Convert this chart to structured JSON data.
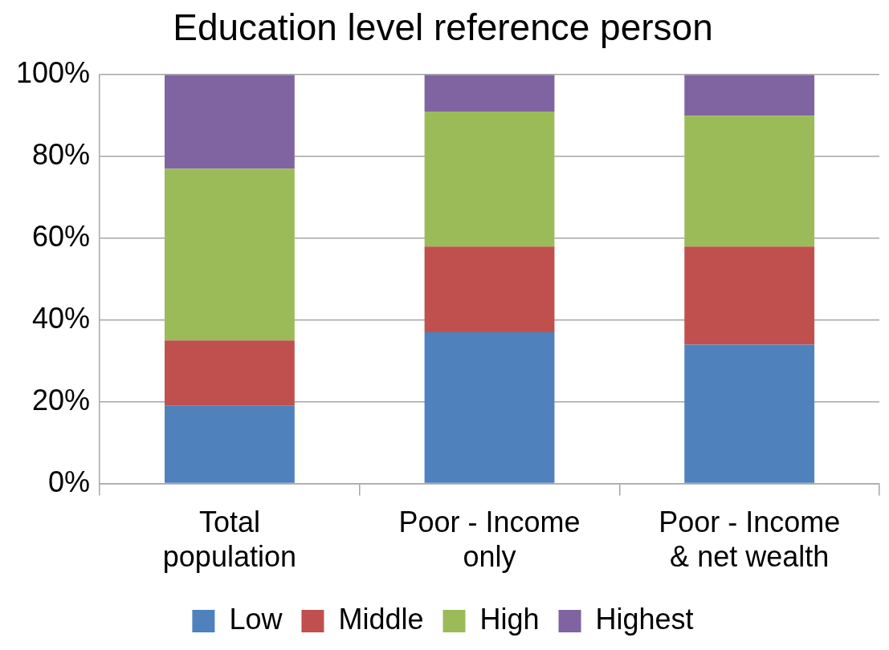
{
  "chart_data": {
    "type": "bar",
    "title": "Education level reference person",
    "categories": [
      "Total population",
      "Poor - Income only",
      "Poor - Income & net wealth"
    ],
    "series": [
      {
        "name": "Low",
        "color": "#4f81bd",
        "values": [
          19,
          37,
          34
        ]
      },
      {
        "name": "Middle",
        "color": "#c0504d",
        "values": [
          16,
          21,
          24
        ]
      },
      {
        "name": "High",
        "color": "#9bbb59",
        "values": [
          42,
          33,
          32
        ]
      },
      {
        "name": "Highest",
        "color": "#8064a2",
        "values": [
          23,
          9,
          10
        ]
      }
    ],
    "stacked": true,
    "ylim": [
      0,
      100
    ],
    "yticks": [
      {
        "value": 0,
        "label": "0%"
      },
      {
        "value": 20,
        "label": "20%"
      },
      {
        "value": 40,
        "label": "40%"
      },
      {
        "value": 60,
        "label": "60%"
      },
      {
        "value": 80,
        "label": "80%"
      },
      {
        "value": 100,
        "label": "100%"
      }
    ],
    "grid": "y",
    "legend": "bottom"
  }
}
